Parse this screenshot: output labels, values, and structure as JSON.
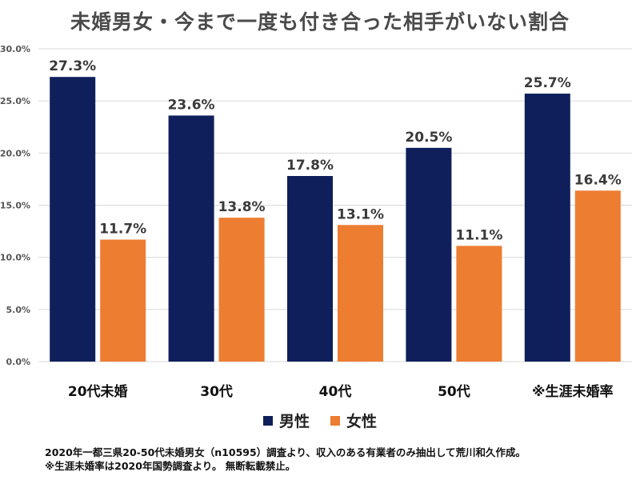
{
  "chart_data": {
    "type": "bar",
    "title": "未婚男女・今まで一度も付き合った相手がいない割合",
    "categories": [
      "20代未婚",
      "30代",
      "40代",
      "50代",
      "※生涯未婚率"
    ],
    "series": [
      {
        "name": "男性",
        "values": [
          27.3,
          23.6,
          17.8,
          20.5,
          25.7
        ],
        "labels": [
          "27.3%",
          "23.6%",
          "17.8%",
          "20.5%",
          "25.7%"
        ]
      },
      {
        "name": "女性",
        "values": [
          11.7,
          13.8,
          13.1,
          11.1,
          16.4
        ],
        "labels": [
          "11.7%",
          "13.8%",
          "13.1%",
          "11.1%",
          "16.4%"
        ]
      }
    ],
    "ylim": [
      0,
      30
    ],
    "yticks": [
      "0.0%",
      "5.0%",
      "10.0%",
      "15.0%",
      "20.0%",
      "25.0%",
      "30.0%"
    ],
    "grid": true,
    "legend_position": "bottom",
    "colors": {
      "男性": "#0e1f5b",
      "女性": "#ed7d31"
    }
  },
  "footnote": {
    "line1": "2020年一都三県20-50代未婚男女（n10595）調査より、収入のある有業者のみ抽出して荒川和久作成。",
    "line2": "※生涯未婚率は2020年国勢調査より。 無断転載禁止。"
  }
}
